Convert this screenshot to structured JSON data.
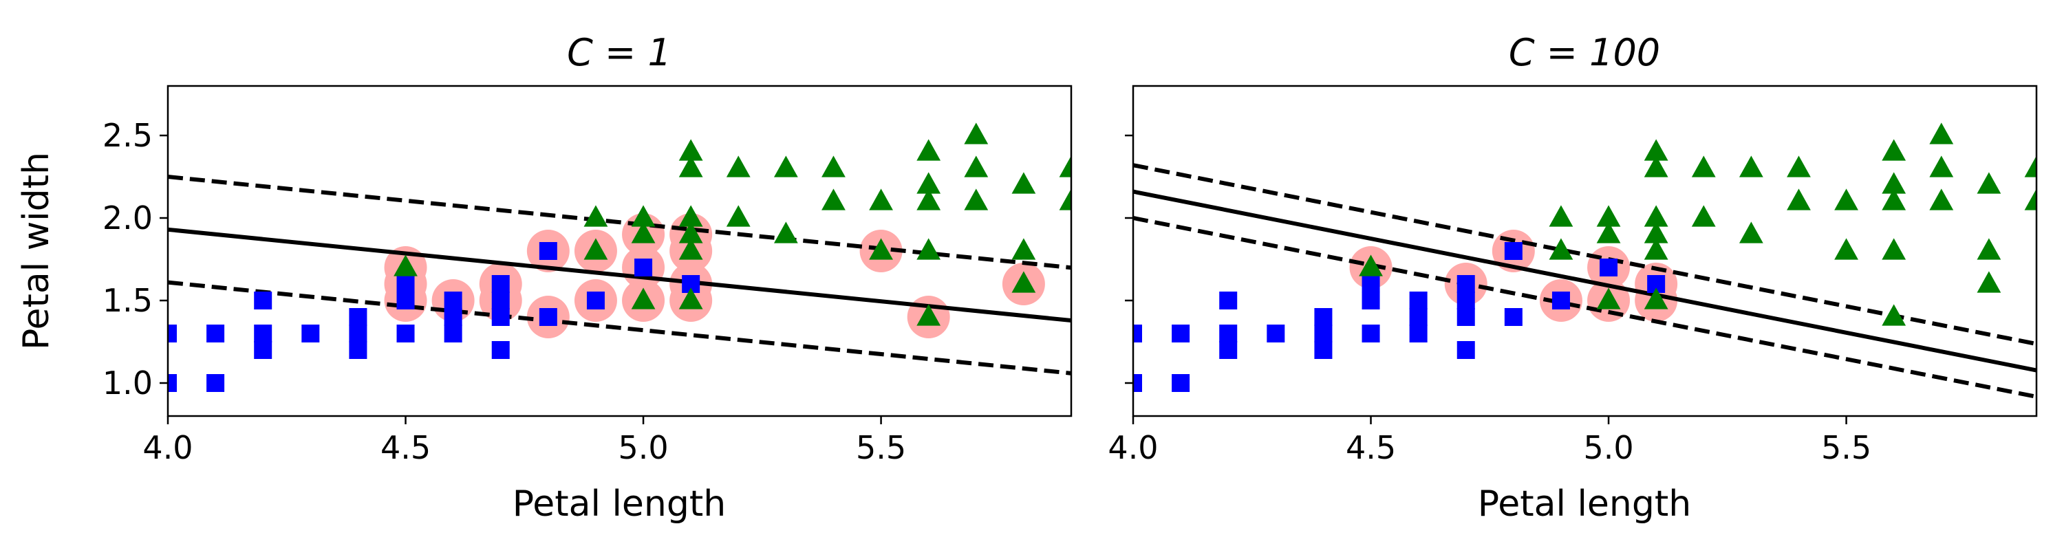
{
  "colors": {
    "class_a": "#0000ff",
    "class_b": "#008000",
    "support_vector": "#ffaaaa",
    "boundary": "#000000"
  },
  "markers": {
    "class_a": "square",
    "class_b": "triangle-up",
    "support_vector": "circle"
  },
  "chart_data": [
    {
      "type": "scatter",
      "title": "C = 1",
      "xlabel": "Petal length",
      "ylabel": "Petal width",
      "xlim": [
        4.0,
        5.9
      ],
      "ylim": [
        0.8,
        2.8
      ],
      "xticks": [
        "4.0",
        "4.5",
        "5.0",
        "5.5"
      ],
      "yticks": [
        "1.0",
        "1.5",
        "2.0",
        "2.5"
      ],
      "grid": false,
      "decision_boundary": {
        "slope": -0.29,
        "intercept": 3.09,
        "margin": 0.32
      },
      "series": [
        {
          "points": [
            [
              4.0,
              1.0
            ],
            [
              4.1,
              1.0
            ],
            [
              4.0,
              1.3
            ],
            [
              4.1,
              1.3
            ],
            [
              4.2,
              1.3
            ],
            [
              4.3,
              1.3
            ],
            [
              4.4,
              1.3
            ],
            [
              4.5,
              1.3
            ],
            [
              4.6,
              1.3
            ],
            [
              4.7,
              1.2
            ],
            [
              4.2,
              1.2
            ],
            [
              4.4,
              1.2
            ],
            [
              4.2,
              1.5
            ],
            [
              4.4,
              1.4
            ],
            [
              4.5,
              1.5
            ],
            [
              4.6,
              1.4
            ],
            [
              4.7,
              1.4
            ],
            [
              4.5,
              1.6
            ],
            [
              4.6,
              1.5
            ],
            [
              4.7,
              1.6
            ],
            [
              4.8,
              1.8
            ],
            [
              4.8,
              1.4
            ],
            [
              4.9,
              1.5
            ],
            [
              5.0,
              1.7
            ],
            [
              5.1,
              1.6
            ],
            [
              4.7,
              1.5
            ]
          ]
        },
        {
          "points": [
            [
              4.5,
              1.7
            ],
            [
              4.9,
              1.8
            ],
            [
              4.9,
              2.0
            ],
            [
              5.0,
              2.0
            ],
            [
              5.0,
              1.5
            ],
            [
              5.0,
              1.9
            ],
            [
              5.1,
              1.9
            ],
            [
              5.1,
              2.0
            ],
            [
              5.1,
              2.3
            ],
            [
              5.1,
              2.4
            ],
            [
              5.1,
              1.8
            ],
            [
              5.1,
              1.5
            ],
            [
              5.2,
              2.0
            ],
            [
              5.2,
              2.3
            ],
            [
              5.3,
              1.9
            ],
            [
              5.3,
              2.3
            ],
            [
              5.4,
              2.1
            ],
            [
              5.4,
              2.3
            ],
            [
              5.5,
              1.8
            ],
            [
              5.5,
              2.1
            ],
            [
              5.6,
              1.4
            ],
            [
              5.6,
              1.8
            ],
            [
              5.6,
              2.1
            ],
            [
              5.6,
              2.2
            ],
            [
              5.6,
              2.4
            ],
            [
              5.7,
              2.1
            ],
            [
              5.7,
              2.3
            ],
            [
              5.7,
              2.5
            ],
            [
              5.8,
              1.6
            ],
            [
              5.8,
              1.8
            ],
            [
              5.8,
              2.2
            ],
            [
              5.9,
              2.1
            ],
            [
              5.9,
              2.3
            ]
          ]
        },
        {
          "points": [
            [
              4.5,
              1.5
            ],
            [
              4.5,
              1.6
            ],
            [
              4.5,
              1.7
            ],
            [
              4.6,
              1.5
            ],
            [
              4.7,
              1.5
            ],
            [
              4.7,
              1.6
            ],
            [
              4.8,
              1.4
            ],
            [
              4.8,
              1.8
            ],
            [
              4.9,
              1.5
            ],
            [
              4.9,
              1.8
            ],
            [
              5.0,
              1.5
            ],
            [
              5.0,
              1.7
            ],
            [
              5.0,
              1.9
            ],
            [
              5.1,
              1.5
            ],
            [
              5.1,
              1.6
            ],
            [
              5.1,
              1.8
            ],
            [
              5.1,
              1.9
            ],
            [
              5.5,
              1.8
            ],
            [
              5.6,
              1.4
            ],
            [
              5.8,
              1.6
            ]
          ]
        }
      ]
    },
    {
      "type": "scatter",
      "title": "C = 100",
      "xlabel": "Petal length",
      "ylabel": "",
      "xlim": [
        4.0,
        5.9
      ],
      "ylim": [
        0.8,
        2.8
      ],
      "xticks": [
        "4.0",
        "4.5",
        "5.0",
        "5.5"
      ],
      "yticks": [],
      "grid": false,
      "decision_boundary": {
        "slope": -0.57,
        "intercept": 4.44,
        "margin": 0.16
      },
      "series": [
        {
          "points": [
            [
              4.0,
              1.0
            ],
            [
              4.1,
              1.0
            ],
            [
              4.0,
              1.3
            ],
            [
              4.1,
              1.3
            ],
            [
              4.2,
              1.3
            ],
            [
              4.3,
              1.3
            ],
            [
              4.4,
              1.3
            ],
            [
              4.5,
              1.3
            ],
            [
              4.6,
              1.3
            ],
            [
              4.7,
              1.2
            ],
            [
              4.2,
              1.2
            ],
            [
              4.4,
              1.2
            ],
            [
              4.2,
              1.5
            ],
            [
              4.4,
              1.4
            ],
            [
              4.5,
              1.5
            ],
            [
              4.6,
              1.4
            ],
            [
              4.7,
              1.4
            ],
            [
              4.5,
              1.6
            ],
            [
              4.6,
              1.5
            ],
            [
              4.7,
              1.6
            ],
            [
              4.8,
              1.8
            ],
            [
              4.8,
              1.4
            ],
            [
              4.9,
              1.5
            ],
            [
              5.0,
              1.7
            ],
            [
              5.1,
              1.6
            ],
            [
              4.7,
              1.5
            ]
          ]
        },
        {
          "points": [
            [
              4.5,
              1.7
            ],
            [
              4.9,
              1.8
            ],
            [
              4.9,
              2.0
            ],
            [
              5.0,
              2.0
            ],
            [
              5.0,
              1.5
            ],
            [
              5.0,
              1.9
            ],
            [
              5.1,
              1.9
            ],
            [
              5.1,
              2.0
            ],
            [
              5.1,
              2.3
            ],
            [
              5.1,
              2.4
            ],
            [
              5.1,
              1.8
            ],
            [
              5.1,
              1.5
            ],
            [
              5.2,
              2.0
            ],
            [
              5.2,
              2.3
            ],
            [
              5.3,
              1.9
            ],
            [
              5.3,
              2.3
            ],
            [
              5.4,
              2.1
            ],
            [
              5.4,
              2.3
            ],
            [
              5.5,
              1.8
            ],
            [
              5.5,
              2.1
            ],
            [
              5.6,
              1.4
            ],
            [
              5.6,
              1.8
            ],
            [
              5.6,
              2.1
            ],
            [
              5.6,
              2.2
            ],
            [
              5.6,
              2.4
            ],
            [
              5.7,
              2.1
            ],
            [
              5.7,
              2.3
            ],
            [
              5.7,
              2.5
            ],
            [
              5.8,
              1.6
            ],
            [
              5.8,
              1.8
            ],
            [
              5.8,
              2.2
            ],
            [
              5.9,
              2.1
            ],
            [
              5.9,
              2.3
            ]
          ]
        },
        {
          "points": [
            [
              4.5,
              1.7
            ],
            [
              4.7,
              1.6
            ],
            [
              4.8,
              1.8
            ],
            [
              4.9,
              1.5
            ],
            [
              5.0,
              1.5
            ],
            [
              5.0,
              1.7
            ],
            [
              5.1,
              1.5
            ],
            [
              5.1,
              1.6
            ]
          ]
        }
      ]
    }
  ]
}
